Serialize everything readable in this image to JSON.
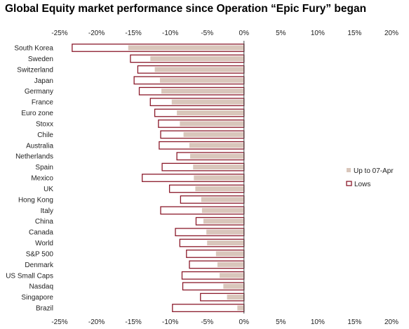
{
  "chart_data": {
    "type": "bar",
    "orientation": "horizontal",
    "title": "Global Equity market performance since Operation “Epic Fury” began",
    "xlim": [
      -25,
      20
    ],
    "x_ticks": [
      "-25%",
      "-20%",
      "-15%",
      "-10%",
      "-5%",
      "0%",
      "5%",
      "10%",
      "15%",
      "20%"
    ],
    "x_tick_values": [
      -25,
      -20,
      -15,
      -10,
      -5,
      0,
      5,
      10,
      15,
      20
    ],
    "x_axis_top_and_bottom": true,
    "categories": [
      "South Korea",
      "Sweden",
      "Switzerland",
      "Japan",
      "Germany",
      "France",
      "Euro zone",
      "Stoxx",
      "Chile",
      "Australia",
      "Netherlands",
      "Spain",
      "Mexico",
      "UK",
      "Hong Kong",
      "Italy",
      "China",
      "Canada",
      "World",
      "S&P 500",
      "Denmark",
      "US Small Caps",
      "Nasdaq",
      "Singapore",
      "Brazil"
    ],
    "series": [
      {
        "name": "Up to 07-Apr",
        "style": "filled",
        "color": "#d9c6bb",
        "values": [
          -15.7,
          -12.7,
          -12.1,
          -11.4,
          -11.2,
          -9.8,
          -9.1,
          -8.7,
          -8.2,
          -7.4,
          -7.3,
          -6.9,
          -6.8,
          -6.6,
          -5.8,
          -5.7,
          -5.5,
          -5.1,
          -5.0,
          -3.8,
          -3.6,
          -3.3,
          -2.8,
          -2.3,
          -0.9
        ]
      },
      {
        "name": "Lows",
        "style": "outline",
        "color": "#8b1a2b",
        "values": [
          -23.3,
          -15.4,
          -14.4,
          -14.9,
          -14.2,
          -12.7,
          -12.1,
          -11.6,
          -11.3,
          -11.5,
          -9.1,
          -11.1,
          -13.8,
          -10.1,
          -8.6,
          -11.3,
          -6.5,
          -9.3,
          -8.7,
          -7.8,
          -7.4,
          -8.4,
          -8.3,
          -5.9,
          -9.7
        ]
      }
    ],
    "legend_position": "right-center",
    "grid": false
  }
}
